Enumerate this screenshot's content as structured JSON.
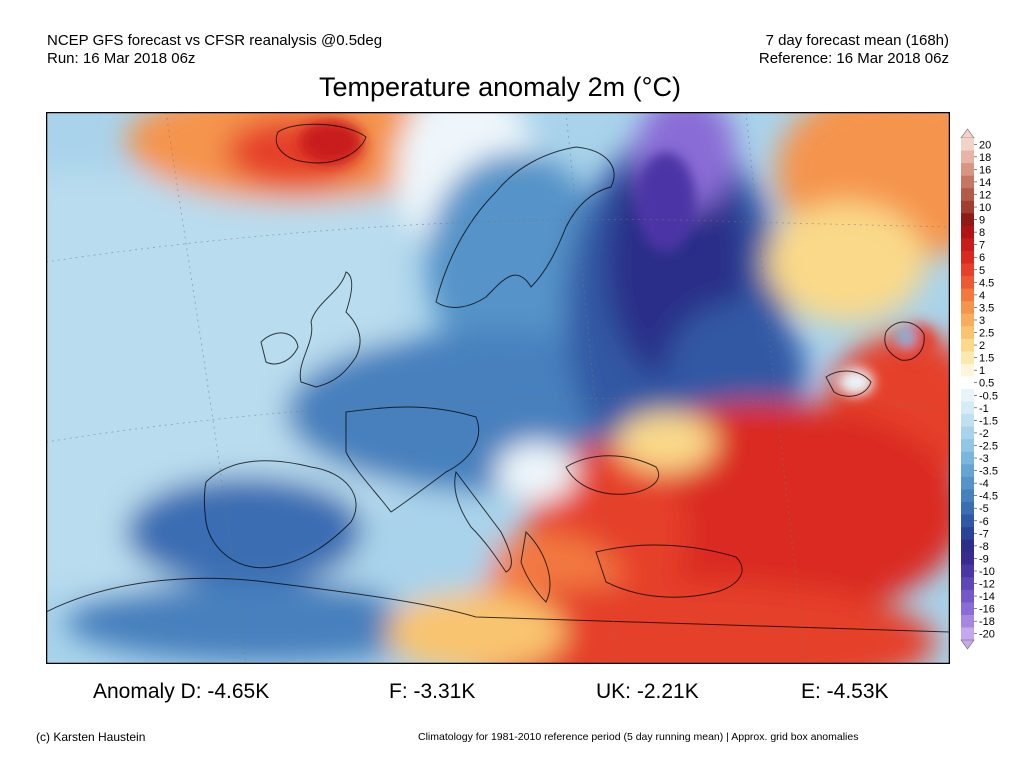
{
  "header": {
    "line1_left": "NCEP GFS forecast vs CFSR reanalysis @0.5deg",
    "line2_left": "Run: 16 Mar 2018 06z",
    "line1_right": "7 day forecast mean (168h)",
    "line2_right": "Reference: 16 Mar 2018 06z"
  },
  "title": "Temperature anomaly 2m (°C)",
  "legend": {
    "labels": [
      "20",
      "18",
      "16",
      "14",
      "12",
      "10",
      "9",
      "8",
      "7",
      "6",
      "5",
      "4.5",
      "4",
      "3.5",
      "3",
      "2.5",
      "2",
      "1.5",
      "1",
      "0.5",
      "-0.5",
      "-1",
      "-1.5",
      "-2",
      "-2.5",
      "-3",
      "-3.5",
      "-4",
      "-4.5",
      "-5",
      "-6",
      "-7",
      "-8",
      "-9",
      "-10",
      "-12",
      "-14",
      "-16",
      "-18",
      "-20"
    ],
    "colors": [
      "#f2d3c8",
      "#e7b5a6",
      "#d89682",
      "#c67763",
      "#b45a48",
      "#a23e31",
      "#8e1a1a",
      "#b11414",
      "#c91c1c",
      "#da2a20",
      "#e5402a",
      "#ec5a34",
      "#f27840",
      "#f5944d",
      "#f8ad5c",
      "#f9c46f",
      "#fad98a",
      "#fbe9ad",
      "#fdf6da",
      "#ffffff",
      "#e9f4fa",
      "#d5ebf6",
      "#bfe0f1",
      "#a9d3eb",
      "#93c6e4",
      "#7bb6dc",
      "#66a4d2",
      "#5593c8",
      "#4680bd",
      "#3a6db2",
      "#3058a4",
      "#294496",
      "#2c2f88",
      "#3a2b93",
      "#4c36a6",
      "#5e45b8",
      "#7457c8",
      "#8a6cd6",
      "#a587e2",
      "#c3a8ee"
    ]
  },
  "stats": {
    "d": "Anomaly D: -4.65K",
    "f": "F: -3.31K",
    "uk": "UK: -2.21K",
    "e": "E: -4.53K"
  },
  "footer": {
    "left": "(c) Karsten Haustein",
    "right": "Climatology for 1981-2010 reference period (5 day running mean) | Approx. grid box anomalies"
  }
}
